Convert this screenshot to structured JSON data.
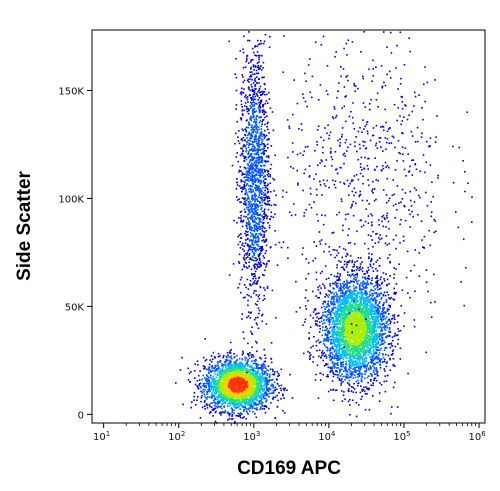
{
  "chart_data": {
    "type": "scatter",
    "subtype": "flow-cytometry-density-dot-plot",
    "title": "",
    "xlabel": "CD169 APC",
    "ylabel": "Side Scatter",
    "x_scale": "log",
    "xlim": [
      7,
      1200000
    ],
    "ylim": [
      -4000,
      178000
    ],
    "x_ticks": [
      {
        "base": "10",
        "exp": "1",
        "value": 10
      },
      {
        "base": "10",
        "exp": "2",
        "value": 100
      },
      {
        "base": "10",
        "exp": "3",
        "value": 1000
      },
      {
        "base": "10",
        "exp": "4",
        "value": 10000
      },
      {
        "base": "10",
        "exp": "5",
        "value": 100000
      },
      {
        "base": "10",
        "exp": "6",
        "value": 1000000
      }
    ],
    "y_ticks": [
      {
        "label": "0",
        "value": 0
      },
      {
        "label": "50K",
        "value": 50000
      },
      {
        "label": "100K",
        "value": 100000
      },
      {
        "label": "150K",
        "value": 150000
      }
    ],
    "grid": false,
    "legend": "none",
    "color_map": [
      "#0000cc",
      "#0055ff",
      "#00bbff",
      "#22dd88",
      "#aaee00",
      "#ffcc00",
      "#ff3300"
    ],
    "populations": [
      {
        "x_center": 600,
        "y_center": 14000,
        "x_spread_decades": 0.22,
        "y_spread": 6000,
        "events": 2600,
        "peak_color": "#ff3300"
      },
      {
        "x_center": 22000,
        "y_center": 40000,
        "x_spread_decades": 0.22,
        "y_spread": 12000,
        "events": 3400,
        "peak_color": "#aaee00"
      },
      {
        "x_center": 1000,
        "y_center": 110000,
        "x_spread_decades": 0.1,
        "y_spread": 30000,
        "events": 1500,
        "peak_color": "#0055ff"
      },
      {
        "x_center": 30000,
        "y_center": 110000,
        "x_spread_decades": 0.55,
        "y_spread": 35000,
        "events": 700,
        "peak_color": "#0000cc"
      }
    ]
  }
}
